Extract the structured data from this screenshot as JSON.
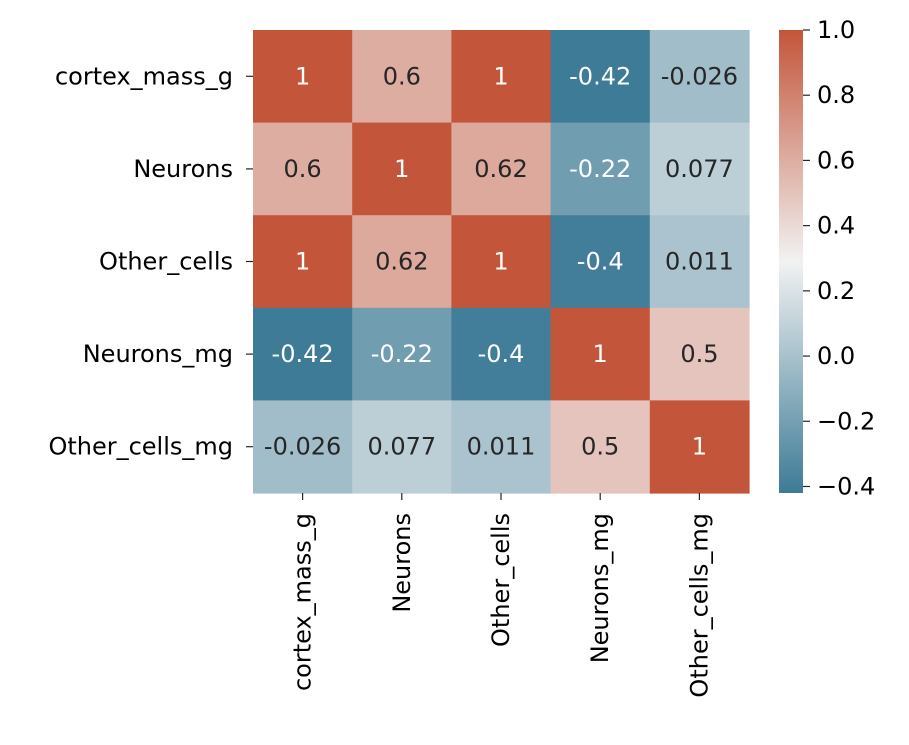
{
  "chart_data": {
    "type": "heatmap",
    "rows": [
      "cortex_mass_g",
      "Neurons",
      "Other_cells",
      "Neurons_mg",
      "Other_cells_mg"
    ],
    "columns": [
      "cortex_mass_g",
      "Neurons",
      "Other_cells",
      "Neurons_mg",
      "Other_cells_mg"
    ],
    "values": [
      [
        1,
        0.6,
        1,
        -0.42,
        -0.026
      ],
      [
        0.6,
        1,
        0.62,
        -0.22,
        0.077
      ],
      [
        1,
        0.62,
        1,
        -0.4,
        0.011
      ],
      [
        -0.42,
        -0.22,
        -0.4,
        1,
        0.5
      ],
      [
        -0.026,
        0.077,
        0.011,
        0.5,
        1
      ]
    ],
    "labels": [
      [
        "1",
        "0.6",
        "1",
        "-0.42",
        "-0.026"
      ],
      [
        "0.6",
        "1",
        "0.62",
        "-0.22",
        "0.077"
      ],
      [
        "1",
        "0.62",
        "1",
        "-0.4",
        "0.011"
      ],
      [
        "-0.42",
        "-0.22",
        "-0.4",
        "1",
        "0.5"
      ],
      [
        "-0.026",
        "0.077",
        "0.011",
        "0.5",
        "1"
      ]
    ],
    "colorbar": {
      "range": [
        -0.42,
        1.0
      ],
      "ticks": [
        1.0,
        0.8,
        0.6,
        0.4,
        0.2,
        0.0,
        -0.2,
        -0.4
      ],
      "tick_labels": [
        "1.0",
        "0.8",
        "0.6",
        "0.4",
        "0.2",
        "0.0",
        "−0.2",
        "−0.4"
      ],
      "placement": "right"
    },
    "colormap": {
      "low": "#3d7b96",
      "mid": "#f2f2f2",
      "high": "#c3553a"
    }
  }
}
